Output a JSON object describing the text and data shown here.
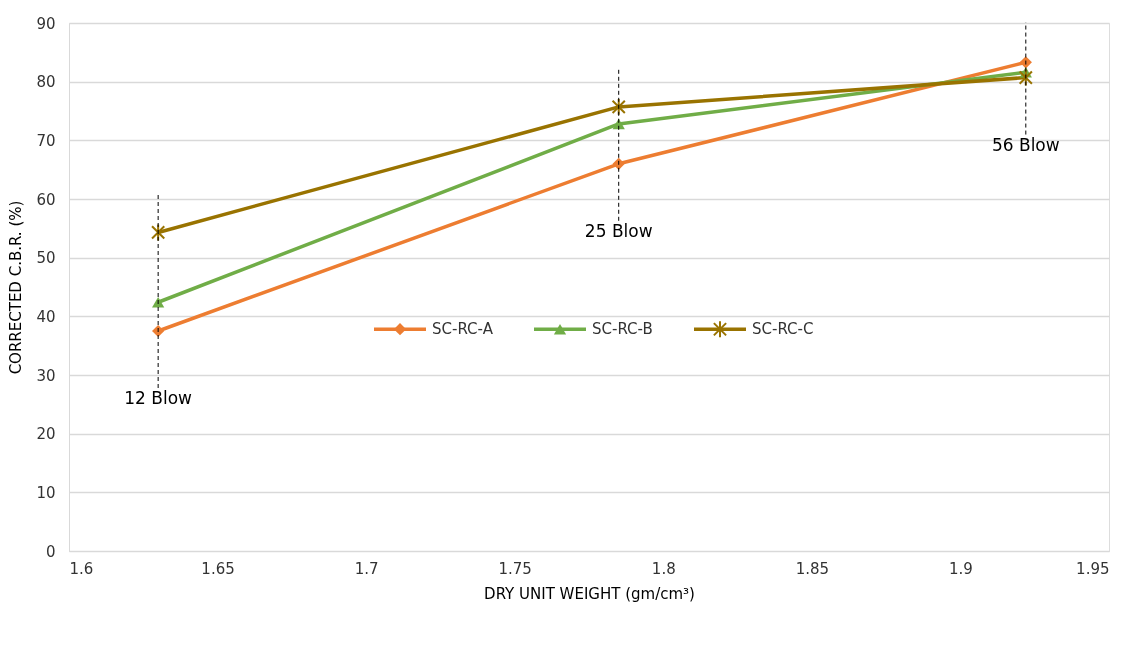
{
  "chart_data": {
    "type": "line",
    "xlabel": "DRY UNIT WEIGHT (gm/cm³)",
    "ylabel": "CORRECTED C.B.R. (%)",
    "x": [
      1.63,
      1.785,
      1.922
    ],
    "series": [
      {
        "name": "SC-RC-A",
        "color": "#ed7d31",
        "marker": "diamond",
        "values": [
          37.5,
          66.0,
          83.3
        ]
      },
      {
        "name": "SC-RC-B",
        "color": "#70ad47",
        "marker": "triangle",
        "values": [
          42.4,
          72.8,
          81.6
        ]
      },
      {
        "name": "SC-RC-C",
        "color": "#997300",
        "marker": "cross",
        "values": [
          54.3,
          75.7,
          80.7
        ]
      }
    ],
    "xlim": [
      1.6,
      1.95
    ],
    "xticks": [
      1.6,
      1.65,
      1.7,
      1.75,
      1.8,
      1.85,
      1.9,
      1.95
    ],
    "ylim": [
      0,
      90
    ],
    "yticks": [
      0,
      10,
      20,
      30,
      40,
      50,
      60,
      70,
      80,
      90
    ],
    "grid": "y",
    "legend": "center",
    "line_style": "solid",
    "ref_lines": [
      {
        "axis": "x",
        "value": 1.63,
        "label": "12 Blow",
        "color": "#000000",
        "line_style": "dashed"
      },
      {
        "axis": "x",
        "value": 1.785,
        "label": "25 Blow",
        "color": "#000000",
        "line_style": "dashed"
      },
      {
        "axis": "x",
        "value": 1.922,
        "label": "56 Blow",
        "color": "#000000",
        "line_style": "dashed"
      }
    ]
  }
}
